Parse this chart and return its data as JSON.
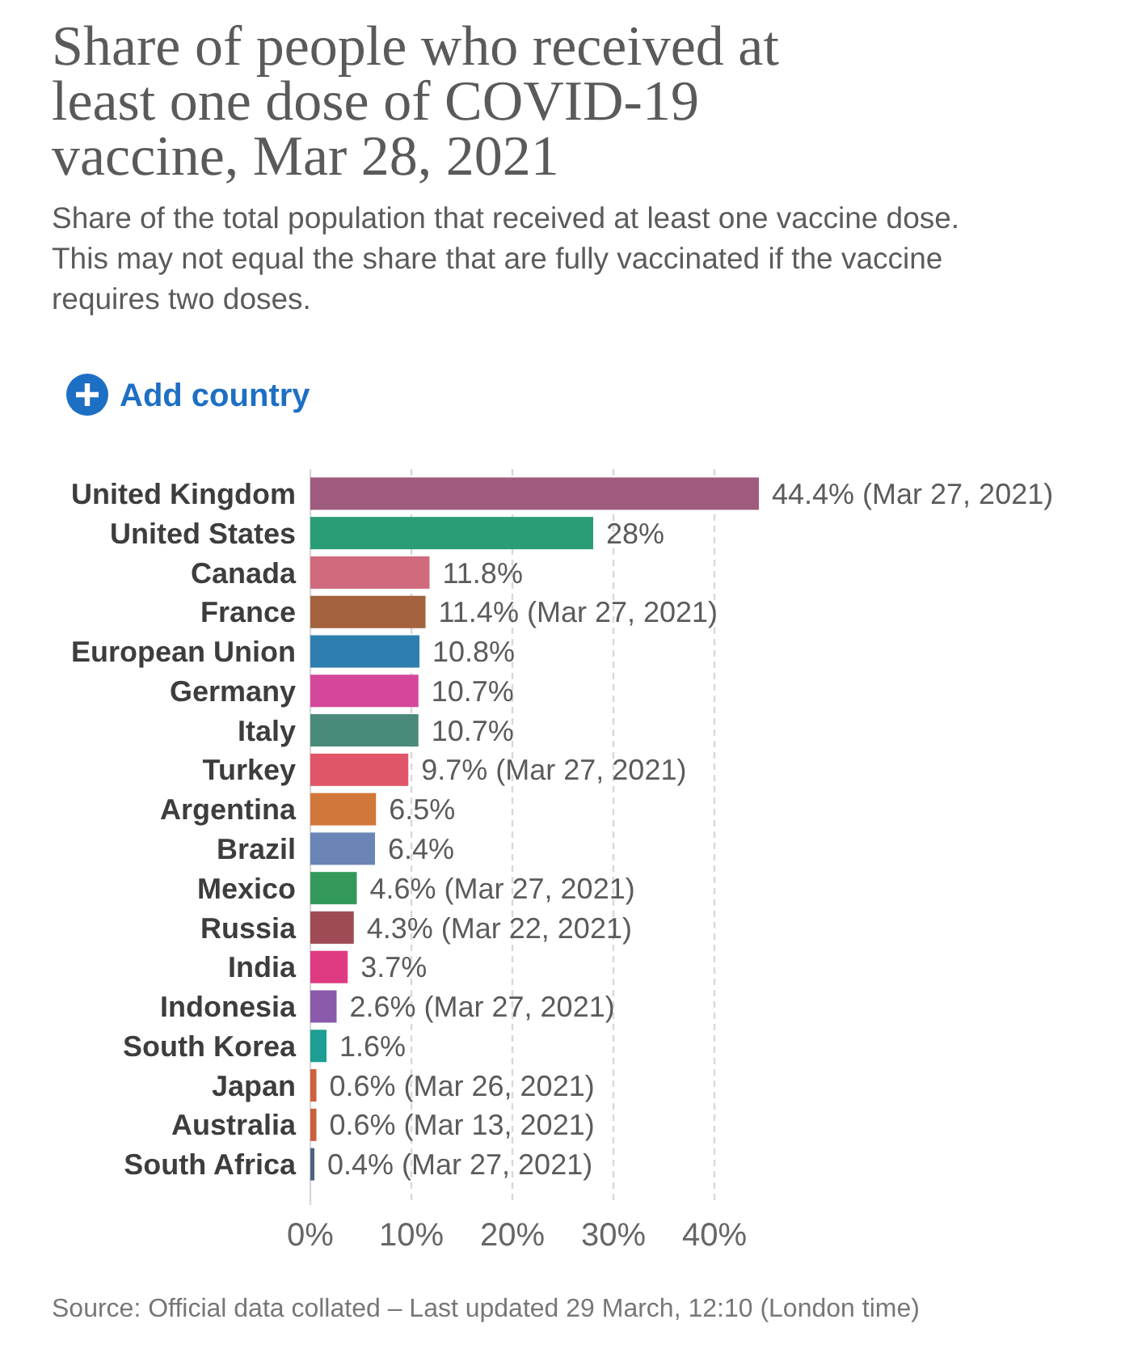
{
  "chart_data": {
    "type": "bar",
    "orientation": "horizontal",
    "title": "Share of people who received at least one dose of COVID-19 vaccine, Mar 28, 2021",
    "subtitle": "Share of the total population that received at least one vaccine dose. This may not equal the share that are fully vaccinated if the vaccine requires two doses.",
    "annotations": [
      "Add country",
      "Source: Official data collated – Last updated 29 March, 12:10 (London time)"
    ],
    "categories": [
      "United Kingdom",
      "United States",
      "Canada",
      "France",
      "European Union",
      "Germany",
      "Italy",
      "Turkey",
      "Argentina",
      "Brazil",
      "Mexico",
      "Russia",
      "India",
      "Indonesia",
      "South Korea",
      "Japan",
      "Australia",
      "South Africa"
    ],
    "values": [
      44.4,
      28,
      11.8,
      11.4,
      10.8,
      10.7,
      10.7,
      9.7,
      6.5,
      6.4,
      4.6,
      4.3,
      3.7,
      2.6,
      1.6,
      0.6,
      0.6,
      0.4
    ],
    "value_labels": [
      "44.4% (Mar 27, 2021)",
      "28%",
      "11.8%",
      "11.4% (Mar 27, 2021)",
      "10.8%",
      "10.7%",
      "10.7%",
      "9.7% (Mar 27, 2021)",
      "6.5%",
      "6.4%",
      "4.6% (Mar 27, 2021)",
      "4.3% (Mar 22, 2021)",
      "3.7%",
      "2.6% (Mar 27, 2021)",
      "1.6%",
      "0.6% (Mar 26, 2021)",
      "0.6% (Mar 13, 2021)",
      "0.4% (Mar 27, 2021)"
    ],
    "colors": [
      "#9e5b7d",
      "#2a9d77",
      "#cf6b7c",
      "#a4623e",
      "#2e7fb0",
      "#d4479b",
      "#4a8a7b",
      "#e05668",
      "#d2773a",
      "#6a85b5",
      "#33995a",
      "#9e4b55",
      "#de3a82",
      "#8a5aab",
      "#1f9e93",
      "#d05f3c",
      "#c9603a",
      "#4e6180"
    ],
    "xlim": [
      0,
      44.4
    ],
    "xticks": [
      {
        "value": 0,
        "label": "0%"
      },
      {
        "value": 10,
        "label": "10%"
      },
      {
        "value": 20,
        "label": "20%"
      },
      {
        "value": 30,
        "label": "30%"
      },
      {
        "value": 40,
        "label": "40%"
      }
    ],
    "grid": "x"
  }
}
